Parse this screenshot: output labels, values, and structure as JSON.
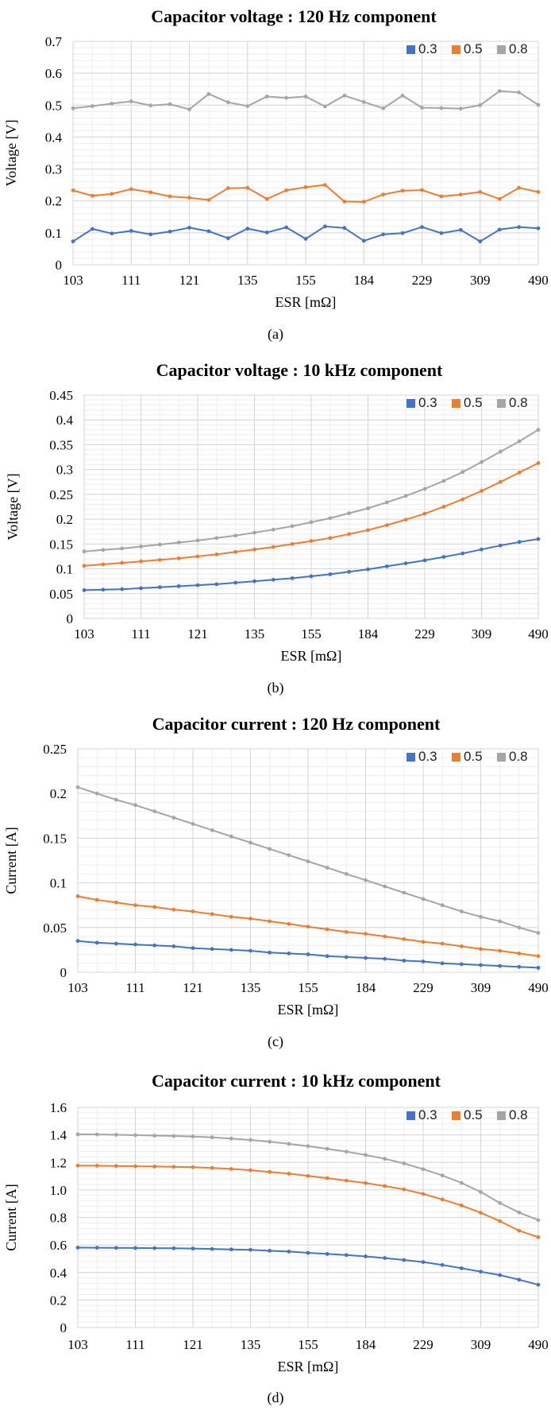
{
  "x_tick_labels": [
    "103",
    "111",
    "121",
    "135",
    "155",
    "184",
    "229",
    "309",
    "490"
  ],
  "series_colors": {
    "0.3": "#4472c4",
    "0.5": "#ed7d31",
    "0.8": "#a5a5a5"
  },
  "chart_data": [
    {
      "type": "line",
      "caption": "(a)",
      "title": "Capacitor voltage : 120 Hz component",
      "xlabel": "ESR [mΩ]",
      "ylabel": "Voltage [V]",
      "ylim": [
        0,
        0.7
      ],
      "yticks": [
        "0",
        "0.1",
        "0.2",
        "0.3",
        "0.4",
        "0.5",
        "0.6",
        "0.7"
      ],
      "legend_position": "top-right",
      "grid": true,
      "series": [
        {
          "name": "0.3",
          "values": [
            0.073,
            0.112,
            0.098,
            0.106,
            0.095,
            0.104,
            0.116,
            0.105,
            0.083,
            0.113,
            0.101,
            0.117,
            0.081,
            0.12,
            0.115,
            0.075,
            0.095,
            0.099,
            0.118,
            0.099,
            0.109,
            0.073,
            0.11,
            0.118,
            0.114
          ]
        },
        {
          "name": "0.5",
          "values": [
            0.233,
            0.216,
            0.222,
            0.237,
            0.227,
            0.214,
            0.21,
            0.203,
            0.24,
            0.241,
            0.206,
            0.233,
            0.243,
            0.25,
            0.198,
            0.197,
            0.22,
            0.232,
            0.234,
            0.214,
            0.22,
            0.228,
            0.206,
            0.241,
            0.228
          ]
        },
        {
          "name": "0.8",
          "values": [
            0.49,
            0.497,
            0.505,
            0.512,
            0.499,
            0.503,
            0.487,
            0.535,
            0.509,
            0.497,
            0.527,
            0.523,
            0.527,
            0.496,
            0.53,
            0.51,
            0.49,
            0.53,
            0.492,
            0.491,
            0.489,
            0.5,
            0.544,
            0.54,
            0.501
          ]
        }
      ]
    },
    {
      "type": "line",
      "caption": "(b)",
      "title": "Capacitor voltage : 10 kHz component",
      "xlabel": "ESR [mΩ]",
      "ylabel": "Voltage [V]",
      "ylim": [
        0,
        0.45
      ],
      "yticks": [
        "0",
        "0.05",
        "0.1",
        "0.15",
        "0.2",
        "0.25",
        "0.3",
        "0.35",
        "0.4",
        "0.45"
      ],
      "legend_position": "top-right",
      "grid": true,
      "series": [
        {
          "name": "0.3",
          "values": [
            0.057,
            0.058,
            0.059,
            0.061,
            0.063,
            0.065,
            0.067,
            0.069,
            0.072,
            0.075,
            0.078,
            0.081,
            0.085,
            0.089,
            0.094,
            0.099,
            0.105,
            0.111,
            0.117,
            0.124,
            0.131,
            0.139,
            0.147,
            0.154,
            0.16
          ]
        },
        {
          "name": "0.5",
          "values": [
            0.106,
            0.109,
            0.112,
            0.115,
            0.118,
            0.121,
            0.125,
            0.129,
            0.134,
            0.139,
            0.144,
            0.15,
            0.156,
            0.162,
            0.17,
            0.178,
            0.188,
            0.199,
            0.211,
            0.225,
            0.24,
            0.257,
            0.275,
            0.294,
            0.313
          ]
        },
        {
          "name": "0.8",
          "values": [
            0.135,
            0.138,
            0.141,
            0.145,
            0.149,
            0.153,
            0.157,
            0.162,
            0.167,
            0.173,
            0.179,
            0.186,
            0.194,
            0.202,
            0.212,
            0.222,
            0.234,
            0.247,
            0.261,
            0.277,
            0.295,
            0.315,
            0.336,
            0.357,
            0.38
          ]
        }
      ]
    },
    {
      "type": "line",
      "caption": "(c)",
      "title": "Capacitor current : 120 Hz component",
      "xlabel": "ESR [mΩ]",
      "ylabel": "Current [A]",
      "ylim": [
        0,
        0.25
      ],
      "yticks": [
        "0",
        "0.05",
        "0.1",
        "0.15",
        "0.2",
        "0.25"
      ],
      "legend_position": "top-right",
      "grid": true,
      "series": [
        {
          "name": "0.3",
          "values": [
            0.035,
            0.033,
            0.032,
            0.031,
            0.03,
            0.029,
            0.027,
            0.026,
            0.025,
            0.024,
            0.022,
            0.021,
            0.02,
            0.018,
            0.017,
            0.016,
            0.015,
            0.013,
            0.012,
            0.01,
            0.009,
            0.008,
            0.007,
            0.006,
            0.005
          ]
        },
        {
          "name": "0.5",
          "values": [
            0.085,
            0.081,
            0.078,
            0.075,
            0.073,
            0.07,
            0.068,
            0.065,
            0.062,
            0.06,
            0.057,
            0.054,
            0.051,
            0.048,
            0.045,
            0.043,
            0.04,
            0.037,
            0.034,
            0.032,
            0.029,
            0.026,
            0.024,
            0.021,
            0.018
          ]
        },
        {
          "name": "0.8",
          "values": [
            0.207,
            0.2,
            0.193,
            0.187,
            0.18,
            0.173,
            0.166,
            0.159,
            0.152,
            0.145,
            0.138,
            0.131,
            0.124,
            0.117,
            0.11,
            0.103,
            0.096,
            0.089,
            0.082,
            0.075,
            0.068,
            0.062,
            0.057,
            0.05,
            0.044
          ]
        }
      ]
    },
    {
      "type": "line",
      "caption": "(d)",
      "title": "Capacitor current : 10 kHz component",
      "xlabel": "ESR [mΩ]",
      "ylabel": "Current [A]",
      "ylim": [
        0,
        1.6
      ],
      "yticks": [
        "0",
        "0.2",
        "0.4",
        "0.6",
        "0.8",
        "1.0",
        "1.2",
        "1.4",
        "1.6"
      ],
      "legend_position": "top-right",
      "grid": true,
      "series": [
        {
          "name": "0.3",
          "values": [
            0.581,
            0.58,
            0.579,
            0.578,
            0.577,
            0.576,
            0.574,
            0.571,
            0.568,
            0.565,
            0.558,
            0.552,
            0.543,
            0.535,
            0.527,
            0.517,
            0.505,
            0.491,
            0.476,
            0.455,
            0.431,
            0.406,
            0.381,
            0.348,
            0.311
          ]
        },
        {
          "name": "0.5",
          "values": [
            1.177,
            1.176,
            1.174,
            1.172,
            1.17,
            1.168,
            1.165,
            1.16,
            1.153,
            1.143,
            1.131,
            1.118,
            1.102,
            1.086,
            1.068,
            1.05,
            1.028,
            1.004,
            0.971,
            0.931,
            0.887,
            0.834,
            0.773,
            0.704,
            0.657
          ]
        },
        {
          "name": "0.8",
          "values": [
            1.404,
            1.403,
            1.401,
            1.398,
            1.395,
            1.392,
            1.388,
            1.382,
            1.373,
            1.363,
            1.35,
            1.335,
            1.318,
            1.299,
            1.278,
            1.254,
            1.226,
            1.193,
            1.151,
            1.105,
            1.051,
            0.985,
            0.905,
            0.836,
            0.781
          ]
        }
      ]
    }
  ]
}
